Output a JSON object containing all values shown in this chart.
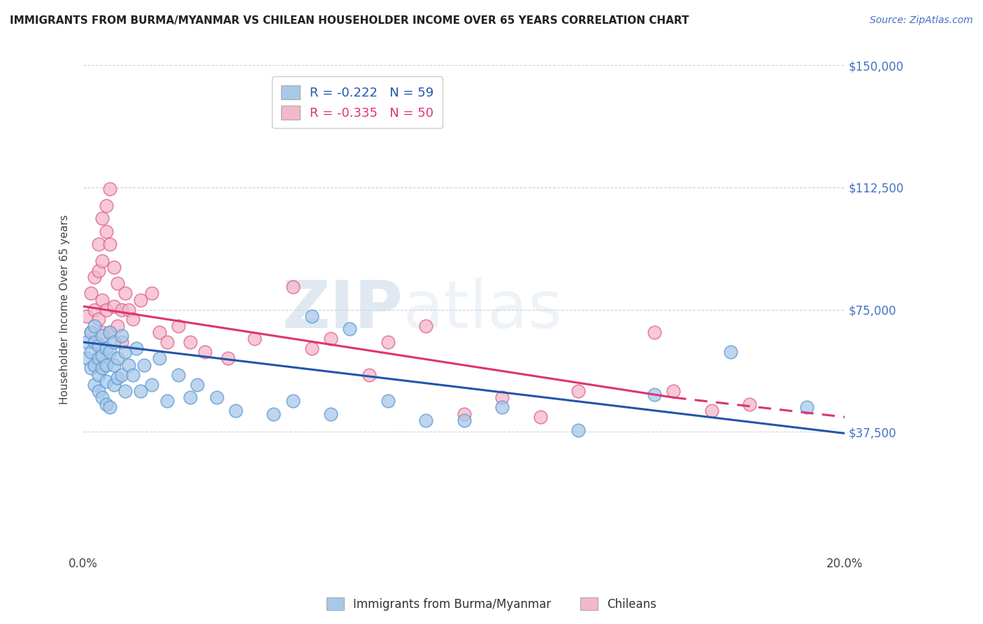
{
  "title": "IMMIGRANTS FROM BURMA/MYANMAR VS CHILEAN HOUSEHOLDER INCOME OVER 65 YEARS CORRELATION CHART",
  "source": "Source: ZipAtlas.com",
  "ylabel": "Householder Income Over 65 years",
  "xlim": [
    0,
    0.2
  ],
  "ylim": [
    0,
    150000
  ],
  "ytick_labels_right": [
    "$37,500",
    "$75,000",
    "$112,500",
    "$150,000"
  ],
  "ytick_positions_right": [
    37500,
    75000,
    112500,
    150000
  ],
  "legend_blue_r": "R = -0.222",
  "legend_blue_n": "N = 59",
  "legend_pink_r": "R = -0.335",
  "legend_pink_n": "N = 50",
  "blue_label": "Immigrants from Burma/Myanmar",
  "pink_label": "Chileans",
  "blue_color": "#a8c8e8",
  "blue_edge": "#5b9bd5",
  "pink_color": "#f4b8c8",
  "pink_edge": "#e06090",
  "blue_line_color": "#2255aa",
  "pink_line_color": "#dd3377",
  "background_color": "#ffffff",
  "watermark_zip": "ZIP",
  "watermark_atlas": "atlas",
  "blue_x": [
    0.001,
    0.001,
    0.002,
    0.002,
    0.002,
    0.003,
    0.003,
    0.003,
    0.003,
    0.004,
    0.004,
    0.004,
    0.004,
    0.005,
    0.005,
    0.005,
    0.005,
    0.006,
    0.006,
    0.006,
    0.006,
    0.007,
    0.007,
    0.007,
    0.008,
    0.008,
    0.008,
    0.009,
    0.009,
    0.01,
    0.01,
    0.011,
    0.011,
    0.012,
    0.013,
    0.014,
    0.015,
    0.016,
    0.018,
    0.02,
    0.022,
    0.025,
    0.028,
    0.03,
    0.035,
    0.04,
    0.05,
    0.055,
    0.06,
    0.065,
    0.07,
    0.08,
    0.09,
    0.1,
    0.11,
    0.13,
    0.15,
    0.17,
    0.19
  ],
  "blue_y": [
    65000,
    60000,
    68000,
    62000,
    57000,
    70000,
    65000,
    58000,
    52000,
    64000,
    60000,
    55000,
    50000,
    67000,
    61000,
    57000,
    48000,
    63000,
    58000,
    53000,
    46000,
    68000,
    62000,
    45000,
    65000,
    58000,
    52000,
    60000,
    54000,
    67000,
    55000,
    62000,
    50000,
    58000,
    55000,
    63000,
    50000,
    58000,
    52000,
    60000,
    47000,
    55000,
    48000,
    52000,
    48000,
    44000,
    43000,
    47000,
    73000,
    43000,
    69000,
    47000,
    41000,
    41000,
    45000,
    38000,
    49000,
    62000,
    45000
  ],
  "pink_x": [
    0.001,
    0.002,
    0.002,
    0.003,
    0.003,
    0.004,
    0.004,
    0.004,
    0.005,
    0.005,
    0.005,
    0.005,
    0.006,
    0.006,
    0.006,
    0.007,
    0.007,
    0.007,
    0.008,
    0.008,
    0.009,
    0.009,
    0.01,
    0.01,
    0.011,
    0.012,
    0.013,
    0.015,
    0.018,
    0.02,
    0.022,
    0.025,
    0.028,
    0.032,
    0.038,
    0.045,
    0.055,
    0.06,
    0.065,
    0.075,
    0.08,
    0.09,
    0.1,
    0.11,
    0.12,
    0.13,
    0.15,
    0.155,
    0.165,
    0.175
  ],
  "pink_y": [
    73000,
    80000,
    68000,
    85000,
    75000,
    95000,
    87000,
    72000,
    103000,
    90000,
    78000,
    68000,
    99000,
    107000,
    75000,
    112000,
    95000,
    68000,
    88000,
    76000,
    83000,
    70000,
    75000,
    65000,
    80000,
    75000,
    72000,
    78000,
    80000,
    68000,
    65000,
    70000,
    65000,
    62000,
    60000,
    66000,
    82000,
    63000,
    66000,
    55000,
    65000,
    70000,
    43000,
    48000,
    42000,
    50000,
    68000,
    50000,
    44000,
    46000
  ]
}
